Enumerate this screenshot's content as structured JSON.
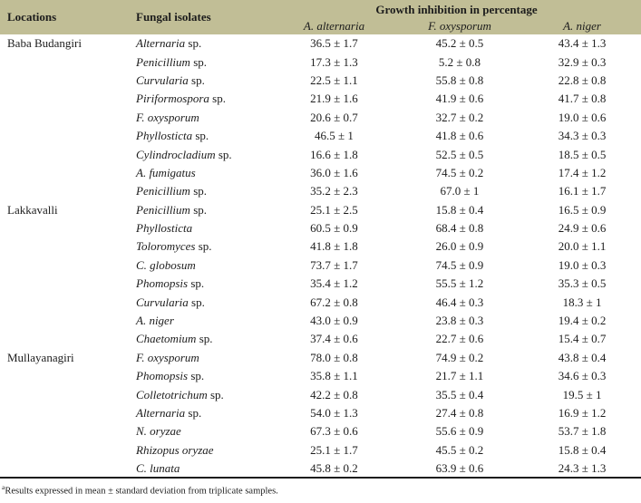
{
  "colors": {
    "header_bg": "#c1be96",
    "rule": "#1c1c1c",
    "text": "#1c1c1c"
  },
  "table": {
    "header": {
      "locations": "Locations",
      "fungal_isolates": "Fungal isolates",
      "group_header": "Growth inhibition in percentage",
      "sub_headers": [
        "A. alternaria",
        "F. oxysporum",
        "A. niger"
      ]
    },
    "rows": [
      {
        "location": "Baba Budangiri",
        "genus": "Alternaria",
        "suffix": "sp.",
        "values": [
          "36.5 ± 1.7",
          "45.2 ± 0.5",
          "43.4 ± 1.3"
        ]
      },
      {
        "location": "",
        "genus": "Penicillium",
        "suffix": "sp.",
        "values": [
          "17.3 ± 1.3",
          "5.2 ± 0.8",
          "32.9 ± 0.3"
        ]
      },
      {
        "location": "",
        "genus": "Curvularia",
        "suffix": "sp.",
        "values": [
          "22.5 ± 1.1",
          "55.8 ± 0.8",
          "22.8 ± 0.8"
        ]
      },
      {
        "location": "",
        "genus": "Piriformospora",
        "suffix": "sp.",
        "values": [
          "21.9 ± 1.6",
          "41.9 ± 0.6",
          "41.7 ± 0.8"
        ]
      },
      {
        "location": "",
        "genus": "F. oxysporum",
        "suffix": "",
        "values": [
          "20.6 ± 0.7",
          "32.7 ± 0.2",
          "19.0 ± 0.6"
        ]
      },
      {
        "location": "",
        "genus": "Phyllosticta",
        "suffix": "sp.",
        "values": [
          "46.5 ± 1",
          "41.8 ± 0.6",
          "34.3 ± 0.3"
        ]
      },
      {
        "location": "",
        "genus": "Cylindrocladium",
        "suffix": "sp.",
        "values": [
          "16.6 ± 1.8",
          "52.5 ± 0.5",
          "18.5 ± 0.5"
        ]
      },
      {
        "location": "",
        "genus": "A. fumigatus",
        "suffix": "",
        "values": [
          "36.0 ± 1.6",
          "74.5 ± 0.2",
          "17.4 ± 1.2"
        ]
      },
      {
        "location": "",
        "genus": "Penicillium",
        "suffix": "sp.",
        "values": [
          "35.2 ± 2.3",
          "67.0 ± 1",
          "16.1 ± 1.7"
        ]
      },
      {
        "location": "Lakkavalli",
        "genus": "Penicillium",
        "suffix": "sp.",
        "values": [
          "25.1 ± 2.5",
          "15.8 ± 0.4",
          "16.5 ± 0.9"
        ]
      },
      {
        "location": "",
        "genus": "Phyllosticta",
        "suffix": "",
        "values": [
          "60.5 ± 0.9",
          "68.4 ± 0.8",
          "24.9 ± 0.6"
        ]
      },
      {
        "location": "",
        "genus": "Toloromyces",
        "suffix": "sp.",
        "values": [
          "41.8 ± 1.8",
          "26.0 ± 0.9",
          "20.0 ± 1.1"
        ]
      },
      {
        "location": "",
        "genus": "C. globosum",
        "suffix": "",
        "values": [
          "73.7 ± 1.7",
          "74.5 ± 0.9",
          "19.0 ± 0.3"
        ]
      },
      {
        "location": "",
        "genus": "Phomopsis",
        "suffix": "sp.",
        "values": [
          "35.4 ± 1.2",
          "55.5 ± 1.2",
          "35.3 ± 0.5"
        ]
      },
      {
        "location": "",
        "genus": "Curvularia",
        "suffix": "sp.",
        "values": [
          "67.2 ± 0.8",
          "46.4 ± 0.3",
          "18.3 ± 1"
        ]
      },
      {
        "location": "",
        "genus": "A. niger",
        "suffix": "",
        "values": [
          "43.0 ± 0.9",
          "23.8 ± 0.3",
          "19.4 ± 0.2"
        ]
      },
      {
        "location": "",
        "genus": "Chaetomium",
        "suffix": "sp.",
        "values": [
          "37.4 ± 0.6",
          "22.7 ± 0.6",
          "15.4 ± 0.7"
        ]
      },
      {
        "location": "Mullayanagiri",
        "genus": "F. oxysporum",
        "suffix": "",
        "values": [
          "78.0 ± 0.8",
          "74.9 ± 0.2",
          "43.8 ± 0.4"
        ]
      },
      {
        "location": "",
        "genus": "Phomopsis",
        "suffix": "sp.",
        "values": [
          "35.8 ± 1.1",
          "21.7 ± 1.1",
          "34.6 ± 0.3"
        ]
      },
      {
        "location": "",
        "genus": "Colletotrichum",
        "suffix": "sp.",
        "values": [
          "42.2 ± 0.8",
          "35.5 ± 0.4",
          "19.5 ± 1"
        ]
      },
      {
        "location": "",
        "genus": "Alternaria",
        "suffix": "sp.",
        "values": [
          "54.0 ± 1.3",
          "27.4 ± 0.8",
          "16.9 ± 1.2"
        ]
      },
      {
        "location": "",
        "genus": "N. oryzae",
        "suffix": "",
        "values": [
          "67.3 ± 0.6",
          "55.6 ± 0.9",
          "53.7 ± 1.8"
        ]
      },
      {
        "location": "",
        "genus": "Rhizopus oryzae",
        "suffix": "",
        "values": [
          "25.1 ± 1.7",
          "45.5 ± 0.2",
          "15.8 ± 0.4"
        ]
      },
      {
        "location": "",
        "genus": "C. lunata",
        "suffix": "",
        "values": [
          "45.8 ± 0.2",
          "63.9 ± 0.6",
          "24.3 ± 1.3"
        ]
      }
    ],
    "footnote_super": "a",
    "footnote": "Results expressed in mean ± standard deviation from triplicate samples."
  }
}
